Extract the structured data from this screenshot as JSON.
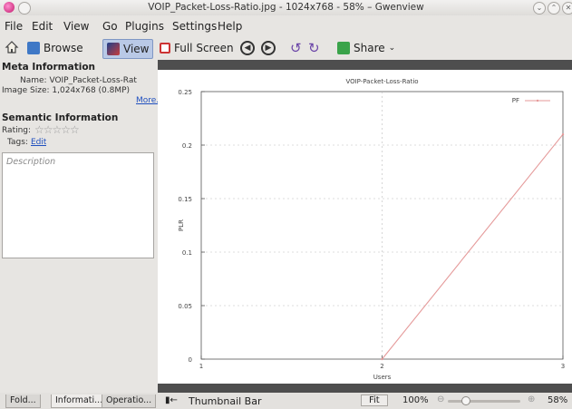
{
  "window": {
    "title": "VOIP_Packet-Loss-Ratio.jpg - 1024x768 - 58% – Gwenview"
  },
  "menu": [
    "File",
    "Edit",
    "View",
    "Go",
    "Plugins",
    "Settings",
    "Help"
  ],
  "toolbar": {
    "browse": "Browse",
    "view": "View",
    "fullscreen": "Full Screen",
    "share": "Share"
  },
  "sidebar": {
    "meta_title": "Meta Information",
    "name_line": "Name: VOIP_Packet-Loss-Rat",
    "size_line": "Image Size: 1,024x768 (0.8MP)",
    "more": "More...",
    "semantic_title": "Semantic Information",
    "rating_label": "Rating:",
    "tags_label": "Tags:",
    "tags_edit": "Edit",
    "description_placeholder": "Description",
    "tabs": [
      "Fold...",
      "Informati...",
      "Operatio..."
    ]
  },
  "status": {
    "thumbnail_bar": "Thumbnail Bar",
    "fit": "Fit",
    "zoom_text": "100%",
    "zoom_percent": "58%",
    "zoom_level": 0.22
  },
  "colors": {
    "accent": "#7f97c4",
    "line": "#e59a9a"
  },
  "chart_data": {
    "type": "line",
    "title": "VOIP-Packet-Loss-Ratio",
    "xlabel": "Users",
    "ylabel": "PLR",
    "xlim": [
      1,
      3
    ],
    "ylim": [
      0,
      0.25
    ],
    "xticks": [
      "1",
      "2",
      "3"
    ],
    "yticks": [
      "0",
      "0.05",
      "0.1",
      "0.15",
      "0.2",
      "0.25"
    ],
    "grid": true,
    "legend": "top-right",
    "series": [
      {
        "name": "PF",
        "x": [
          2,
          3
        ],
        "y": [
          0,
          0.21
        ]
      }
    ]
  }
}
